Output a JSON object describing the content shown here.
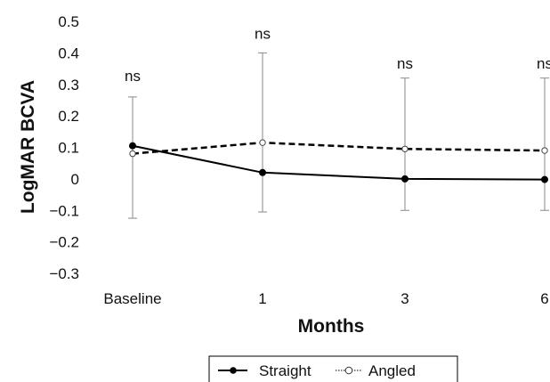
{
  "chart_data": {
    "type": "line",
    "categories": [
      "Baseline",
      "1",
      "3",
      "6"
    ],
    "xlabel": "Months",
    "ylabel": "LogMAR BCVA",
    "ylim": [
      -0.3,
      0.5
    ],
    "yticks": [
      "0.5",
      "0.4",
      "0.3",
      "0.2",
      "0.1",
      "0",
      "−0.1",
      "−0.2",
      "−0.3"
    ],
    "ytick_values": [
      0.5,
      0.4,
      0.3,
      0.2,
      0.1,
      0,
      -0.1,
      -0.2,
      -0.3
    ],
    "grid": false,
    "legend_position": "bottom",
    "series": [
      {
        "name": "Straight",
        "values": [
          0.105,
          0.02,
          0.0,
          -0.002
        ],
        "color": "#000000",
        "line_style": "solid",
        "marker": "filled-circle"
      },
      {
        "name": "Angled",
        "values": [
          0.08,
          0.115,
          0.095,
          0.09
        ],
        "color": "#000000",
        "line_style": "dashed",
        "marker": "open-circle"
      }
    ],
    "error_bars": {
      "upper": [
        0.26,
        0.4,
        0.32,
        0.32
      ],
      "lower": [
        -0.125,
        -0.105,
        -0.1,
        -0.1
      ],
      "color": "#888888"
    },
    "annotations": [
      "ns",
      "ns",
      "ns",
      "ns"
    ],
    "annotation_y": [
      0.31,
      0.445,
      0.35,
      0.35
    ]
  }
}
